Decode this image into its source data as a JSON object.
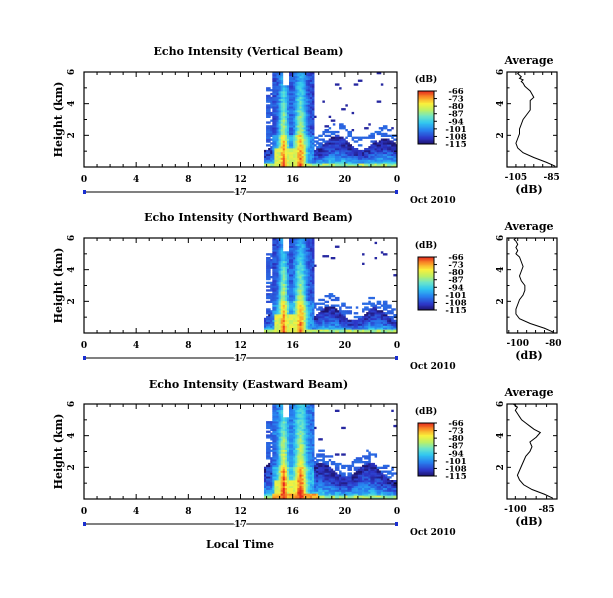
{
  "figure": {
    "xlabel": "Local Time",
    "date_label": "Oct 2010",
    "day_label": "17",
    "colorbar_unit": "(dB)",
    "colorbar_ticks": [
      "-66",
      "-73",
      "-80",
      "-87",
      "-94",
      "-101",
      "-108",
      "-115"
    ],
    "colorbar_range": [
      -115,
      -66
    ]
  },
  "chart_data": [
    {
      "type": "heatmap",
      "title": "Echo Intensity (Vertical Beam)",
      "ylabel": "Height (km)",
      "xticks": [
        "0",
        "4",
        "8",
        "12",
        "16",
        "20",
        "0"
      ],
      "yticks": [
        "2",
        "4",
        "6"
      ],
      "xlim": [
        0,
        24
      ],
      "ylim": [
        0,
        6
      ],
      "zlim": [
        -115,
        -66
      ],
      "profile": {
        "title": "Average",
        "xlabel": "(dB)",
        "xticks": [
          "-105",
          "-85"
        ],
        "yticks": [
          "2",
          "4",
          "6"
        ],
        "xlim": [
          -110,
          -82
        ],
        "ylim": [
          0,
          6
        ],
        "x": [
          -83,
          -88,
          -95,
          -101,
          -104,
          -105,
          -104,
          -103,
          -103,
          -102,
          -101,
          -99,
          -97,
          -97,
          -97,
          -95,
          -96,
          -97,
          -99,
          -100,
          -101,
          -102,
          -101,
          -103,
          -102,
          -103,
          -104,
          -103
        ],
        "y": [
          0.05,
          0.3,
          0.6,
          0.9,
          1.2,
          1.5,
          1.8,
          2.1,
          2.4,
          2.7,
          3.0,
          3.3,
          3.6,
          3.9,
          4.2,
          4.4,
          4.6,
          4.8,
          5.0,
          5.1,
          5.3,
          5.4,
          5.5,
          5.6,
          5.7,
          5.8,
          5.9,
          6.0
        ]
      }
    },
    {
      "type": "heatmap",
      "title": "Echo Intensity (Northward Beam)",
      "ylabel": "Height (km)",
      "xticks": [
        "0",
        "4",
        "8",
        "12",
        "16",
        "20",
        "0"
      ],
      "yticks": [
        "2",
        "4",
        "6"
      ],
      "xlim": [
        0,
        24
      ],
      "ylim": [
        0,
        6
      ],
      "zlim": [
        -115,
        -66
      ],
      "profile": {
        "title": "Average",
        "xlabel": "(dB)",
        "xticks": [
          "-100",
          "-80"
        ],
        "yticks": [
          "2",
          "4",
          "6"
        ],
        "xlim": [
          -106,
          -78
        ],
        "ylim": [
          0,
          6
        ],
        "x": [
          -80,
          -85,
          -93,
          -99,
          -101,
          -101,
          -100,
          -99,
          -97,
          -96,
          -96,
          -98,
          -99,
          -98,
          -97,
          -98,
          -99,
          -101,
          -100,
          -101,
          -100,
          -101,
          -102,
          -101
        ],
        "y": [
          0.05,
          0.3,
          0.6,
          0.9,
          1.2,
          1.5,
          1.8,
          2.1,
          2.4,
          2.7,
          3.0,
          3.3,
          3.6,
          3.9,
          4.2,
          4.5,
          4.8,
          5.0,
          5.2,
          5.4,
          5.6,
          5.8,
          5.9,
          6.0
        ]
      }
    },
    {
      "type": "heatmap",
      "title": "Echo Intensity (Eastward Beam)",
      "ylabel": "Height (km)",
      "xticks": [
        "0",
        "4",
        "8",
        "12",
        "16",
        "20",
        "0"
      ],
      "yticks": [
        "2",
        "4",
        "6"
      ],
      "xlim": [
        0,
        24
      ],
      "ylim": [
        0,
        6
      ],
      "zlim": [
        -115,
        -66
      ],
      "profile": {
        "title": "Average",
        "xlabel": "(dB)",
        "xticks": [
          "-100",
          "-85"
        ],
        "yticks": [
          "2",
          "4",
          "6"
        ],
        "xlim": [
          -104,
          -80
        ],
        "ylim": [
          0,
          6
        ],
        "x": [
          -82,
          -86,
          -92,
          -96,
          -98,
          -99,
          -98,
          -97,
          -96,
          -95,
          -93,
          -92,
          -93,
          -90,
          -88,
          -91,
          -93,
          -95,
          -97,
          -98,
          -99,
          -100,
          -99,
          -100,
          -101
        ],
        "y": [
          0.05,
          0.3,
          0.6,
          0.9,
          1.2,
          1.5,
          1.8,
          2.1,
          2.4,
          2.7,
          3.0,
          3.3,
          3.6,
          3.9,
          4.2,
          4.4,
          4.6,
          4.8,
          5.0,
          5.2,
          5.4,
          5.6,
          5.8,
          5.9,
          6.0
        ]
      }
    }
  ]
}
